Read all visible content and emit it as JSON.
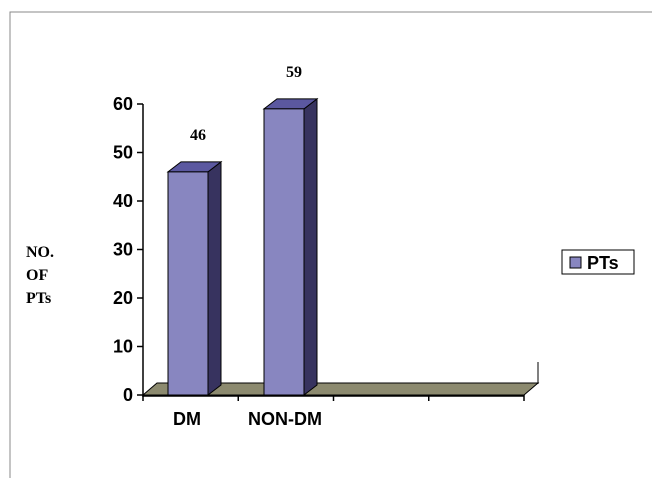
{
  "chart_data": {
    "type": "bar",
    "categories": [
      "DM",
      "NON-DM"
    ],
    "series": [
      {
        "name": "PTs",
        "values": [
          46,
          59
        ],
        "color": "#8886c0"
      }
    ],
    "ylabel_lines": [
      "NO.",
      "OF",
      "PTs"
    ],
    "ylim": [
      0,
      60
    ],
    "yticks": [
      0,
      10,
      20,
      30,
      40,
      50,
      60
    ],
    "grid": false,
    "legend": "right",
    "colors": {
      "bar_front": "#8886c0",
      "bar_side": "#37335f",
      "bar_top": "#5b58a0",
      "floor": "#8c8a6f"
    }
  }
}
